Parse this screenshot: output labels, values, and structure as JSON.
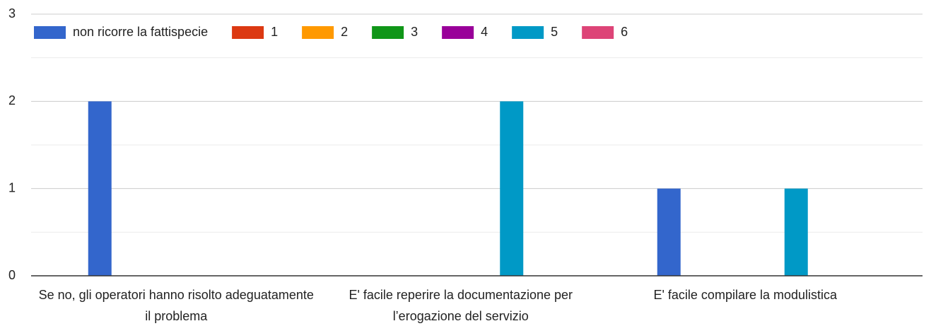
{
  "chart_data": {
    "type": "bar",
    "categories": [
      "Se no, gli operatori hanno risolto adeguatamente il problema",
      "E' facile reperire la documentazione per l’erogazione del servizio",
      "E' facile compilare la modulistica"
    ],
    "series": [
      {
        "name": "non ricorre la fattispecie",
        "color": "#3366cc",
        "values": [
          2,
          0,
          1
        ]
      },
      {
        "name": "1",
        "color": "#dc3912",
        "values": [
          0,
          0,
          0
        ]
      },
      {
        "name": "2",
        "color": "#ff9900",
        "values": [
          0,
          0,
          0
        ]
      },
      {
        "name": "3",
        "color": "#109618",
        "values": [
          0,
          0,
          0
        ]
      },
      {
        "name": "4",
        "color": "#990099",
        "values": [
          0,
          0,
          0
        ]
      },
      {
        "name": "5",
        "color": "#0099c6",
        "values": [
          0,
          2,
          1
        ]
      },
      {
        "name": "6",
        "color": "#dd4477",
        "values": [
          0,
          0,
          0
        ]
      }
    ],
    "ylim": [
      0,
      3
    ],
    "yticks": [
      0,
      1,
      2,
      3
    ],
    "grid": true,
    "minor_grid": true,
    "legend": "top"
  }
}
